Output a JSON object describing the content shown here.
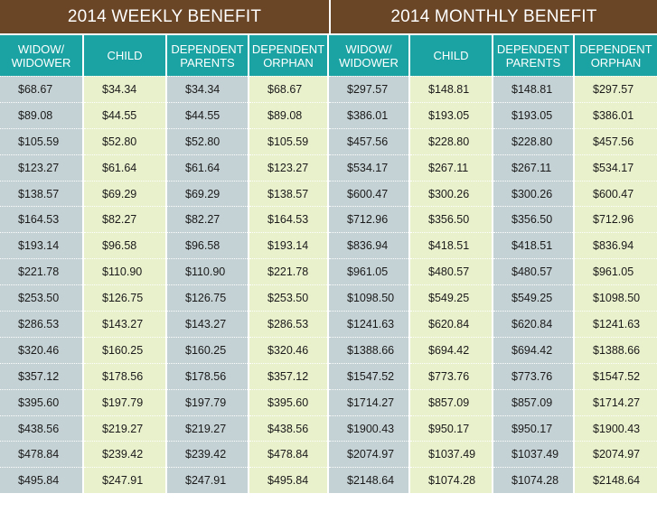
{
  "sections": {
    "weekly": "2014 WEEKLY BENEFIT",
    "monthly": "2014 MONTHLY BENEFIT"
  },
  "headers": [
    "WIDOW/\nWIDOWER",
    "CHILD",
    "DEPENDENT\nPARENTS",
    "DEPENDENT\nORPHAN",
    "WIDOW/\nWIDOWER",
    "CHILD",
    "DEPENDENT\nPARENTS",
    "DEPENDENT\nORPHAN"
  ],
  "columns": [
    [
      "$68.67",
      "$89.08",
      "$105.59",
      "$123.27",
      "$138.57",
      "$164.53",
      "$193.14",
      "$221.78",
      "$253.50",
      "$286.53",
      "$320.46",
      "$357.12",
      "$395.60",
      "$438.56",
      "$478.84",
      "$495.84"
    ],
    [
      "$34.34",
      "$44.55",
      "$52.80",
      "$61.64",
      "$69.29",
      "$82.27",
      "$96.58",
      "$110.90",
      "$126.75",
      "$143.27",
      "$160.25",
      "$178.56",
      "$197.79",
      "$219.27",
      "$239.42",
      "$247.91"
    ],
    [
      "$34.34",
      "$44.55",
      "$52.80",
      "$61.64",
      "$69.29",
      "$82.27",
      "$96.58",
      "$110.90",
      "$126.75",
      "$143.27",
      "$160.25",
      "$178.56",
      "$197.79",
      "$219.27",
      "$239.42",
      "$247.91"
    ],
    [
      "$68.67",
      "$89.08",
      "$105.59",
      "$123.27",
      "$138.57",
      "$164.53",
      "$193.14",
      "$221.78",
      "$253.50",
      "$286.53",
      "$320.46",
      "$357.12",
      "$395.60",
      "$438.56",
      "$478.84",
      "$495.84"
    ],
    [
      "$297.57",
      "$386.01",
      "$457.56",
      "$534.17",
      "$600.47",
      "$712.96",
      "$836.94",
      "$961.05",
      "$1098.50",
      "$1241.63",
      "$1388.66",
      "$1547.52",
      "$1714.27",
      "$1900.43",
      "$2074.97",
      "$2148.64"
    ],
    [
      "$148.81",
      "$193.05",
      "$228.80",
      "$267.11",
      "$300.26",
      "$356.50",
      "$418.51",
      "$480.57",
      "$549.25",
      "$620.84",
      "$694.42",
      "$773.76",
      "$857.09",
      "$950.17",
      "$1037.49",
      "$1074.28"
    ],
    [
      "$148.81",
      "$193.05",
      "$228.80",
      "$267.11",
      "$300.26",
      "$356.50",
      "$418.51",
      "$480.57",
      "$549.25",
      "$620.84",
      "$694.42",
      "$773.76",
      "$857.09",
      "$950.17",
      "$1037.49",
      "$1074.28"
    ],
    [
      "$297.57",
      "$386.01",
      "$457.56",
      "$534.17",
      "$600.47",
      "$712.96",
      "$836.94",
      "$961.05",
      "$1098.50",
      "$1241.63",
      "$1388.66",
      "$1547.52",
      "$1714.27",
      "$1900.43",
      "$2074.97",
      "$2148.64"
    ]
  ],
  "colors": {
    "section_bg": "#6a4526",
    "header_bg": "#1aa3a2",
    "gray_cell": "#c5d2d5",
    "green_cell": "#e9f0cc"
  }
}
